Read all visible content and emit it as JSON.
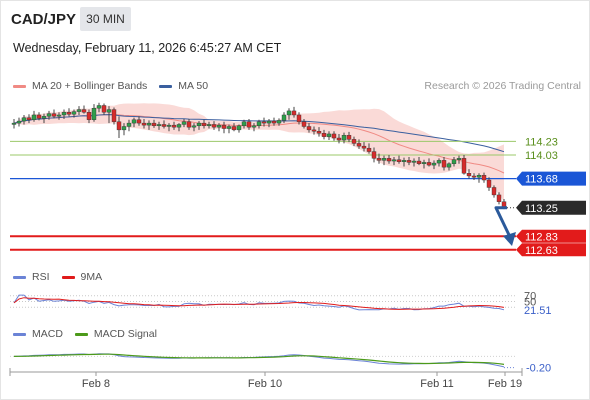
{
  "header": {
    "symbol": "CAD/JPY",
    "timeframe": "30 MIN",
    "datetime": "Wednesday, February 11, 2026 6:45:27 AM CET",
    "credit": "Research © 2026 Trading Central"
  },
  "legends": {
    "price": [
      {
        "label": "MA 20 + Bollinger Bands",
        "color": "#f08a84"
      },
      {
        "label": "MA 50",
        "color": "#3a5f9f"
      }
    ],
    "rsi": [
      {
        "label": "RSI",
        "color": "#6b83d6"
      },
      {
        "label": "9MA",
        "color": "#e01b1b"
      }
    ],
    "macd": [
      {
        "label": "MACD",
        "color": "#6b83d6"
      },
      {
        "label": "MACD Signal",
        "color": "#4c9a1a"
      }
    ]
  },
  "colors": {
    "bull": "#2e9e4a",
    "bear": "#d62b2b",
    "bollinger_fill": "#f9d3d0",
    "ma20": "#f08a84",
    "ma50": "#3a5f9f",
    "resistance": "#9bc86a",
    "pivot": "#1a56d6",
    "support": "#e21b1b",
    "current": "#2a2a2a",
    "arrow": "#2b5a9b"
  },
  "chart_data": {
    "type": "candlestick",
    "y_range": [
      112.45,
      114.9
    ],
    "x_ticks": [
      "Feb 8",
      "Feb 10",
      "Feb 11",
      "Feb 19"
    ],
    "levels": [
      {
        "value": 114.23,
        "label": "114.23",
        "kind": "resistance"
      },
      {
        "value": 114.03,
        "label": "114.03",
        "kind": "resistance"
      },
      {
        "value": 113.68,
        "label": "113.68",
        "kind": "pivot"
      },
      {
        "value": 113.25,
        "label": "113.25",
        "kind": "current"
      },
      {
        "value": 112.83,
        "label": "112.83",
        "kind": "support"
      },
      {
        "value": 112.63,
        "label": "112.63",
        "kind": "support"
      }
    ],
    "forecast_arrow": {
      "from": 113.25,
      "to": 112.73
    },
    "candles": [
      {
        "o": 114.48,
        "h": 114.56,
        "l": 114.42,
        "c": 114.5
      },
      {
        "o": 114.5,
        "h": 114.58,
        "l": 114.45,
        "c": 114.53
      },
      {
        "o": 114.53,
        "h": 114.62,
        "l": 114.48,
        "c": 114.58
      },
      {
        "o": 114.58,
        "h": 114.63,
        "l": 114.5,
        "c": 114.55
      },
      {
        "o": 114.55,
        "h": 114.68,
        "l": 114.52,
        "c": 114.62
      },
      {
        "o": 114.62,
        "h": 114.66,
        "l": 114.54,
        "c": 114.57
      },
      {
        "o": 114.57,
        "h": 114.64,
        "l": 114.5,
        "c": 114.6
      },
      {
        "o": 114.6,
        "h": 114.68,
        "l": 114.55,
        "c": 114.64
      },
      {
        "o": 114.64,
        "h": 114.7,
        "l": 114.57,
        "c": 114.6
      },
      {
        "o": 114.6,
        "h": 114.66,
        "l": 114.55,
        "c": 114.62
      },
      {
        "o": 114.62,
        "h": 114.7,
        "l": 114.56,
        "c": 114.66
      },
      {
        "o": 114.66,
        "h": 114.72,
        "l": 114.6,
        "c": 114.63
      },
      {
        "o": 114.63,
        "h": 114.7,
        "l": 114.58,
        "c": 114.67
      },
      {
        "o": 114.67,
        "h": 114.75,
        "l": 114.62,
        "c": 114.7
      },
      {
        "o": 114.7,
        "h": 114.76,
        "l": 114.64,
        "c": 114.66
      },
      {
        "o": 114.66,
        "h": 114.7,
        "l": 114.5,
        "c": 114.55
      },
      {
        "o": 114.55,
        "h": 114.78,
        "l": 114.52,
        "c": 114.72
      },
      {
        "o": 114.72,
        "h": 114.8,
        "l": 114.66,
        "c": 114.76
      },
      {
        "o": 114.76,
        "h": 114.79,
        "l": 114.62,
        "c": 114.66
      },
      {
        "o": 114.66,
        "h": 114.75,
        "l": 114.5,
        "c": 114.7
      },
      {
        "o": 114.7,
        "h": 114.73,
        "l": 114.48,
        "c": 114.52
      },
      {
        "o": 114.52,
        "h": 114.6,
        "l": 114.28,
        "c": 114.4
      },
      {
        "o": 114.4,
        "h": 114.5,
        "l": 114.32,
        "c": 114.45
      },
      {
        "o": 114.45,
        "h": 114.55,
        "l": 114.38,
        "c": 114.5
      },
      {
        "o": 114.5,
        "h": 114.58,
        "l": 114.44,
        "c": 114.55
      },
      {
        "o": 114.55,
        "h": 114.6,
        "l": 114.46,
        "c": 114.5
      },
      {
        "o": 114.5,
        "h": 114.56,
        "l": 114.42,
        "c": 114.47
      },
      {
        "o": 114.47,
        "h": 114.54,
        "l": 114.4,
        "c": 114.5
      },
      {
        "o": 114.5,
        "h": 114.55,
        "l": 114.43,
        "c": 114.46
      },
      {
        "o": 114.46,
        "h": 114.52,
        "l": 114.4,
        "c": 114.48
      },
      {
        "o": 114.48,
        "h": 114.54,
        "l": 114.42,
        "c": 114.45
      },
      {
        "o": 114.45,
        "h": 114.5,
        "l": 114.38,
        "c": 114.47
      },
      {
        "o": 114.47,
        "h": 114.52,
        "l": 114.4,
        "c": 114.44
      },
      {
        "o": 114.44,
        "h": 114.5,
        "l": 114.38,
        "c": 114.48
      },
      {
        "o": 114.48,
        "h": 114.56,
        "l": 114.44,
        "c": 114.52
      },
      {
        "o": 114.52,
        "h": 114.56,
        "l": 114.4,
        "c": 114.44
      },
      {
        "o": 114.44,
        "h": 114.5,
        "l": 114.38,
        "c": 114.46
      },
      {
        "o": 114.46,
        "h": 114.53,
        "l": 114.4,
        "c": 114.5
      },
      {
        "o": 114.5,
        "h": 114.55,
        "l": 114.42,
        "c": 114.46
      },
      {
        "o": 114.46,
        "h": 114.52,
        "l": 114.42,
        "c": 114.48
      },
      {
        "o": 114.48,
        "h": 114.53,
        "l": 114.4,
        "c": 114.44
      },
      {
        "o": 114.44,
        "h": 114.5,
        "l": 114.38,
        "c": 114.47
      },
      {
        "o": 114.47,
        "h": 114.52,
        "l": 114.35,
        "c": 114.42
      },
      {
        "o": 114.42,
        "h": 114.48,
        "l": 114.35,
        "c": 114.45
      },
      {
        "o": 114.45,
        "h": 114.5,
        "l": 114.38,
        "c": 114.4
      },
      {
        "o": 114.4,
        "h": 114.48,
        "l": 114.36,
        "c": 114.46
      },
      {
        "o": 114.46,
        "h": 114.55,
        "l": 114.42,
        "c": 114.52
      },
      {
        "o": 114.52,
        "h": 114.56,
        "l": 114.4,
        "c": 114.44
      },
      {
        "o": 114.44,
        "h": 114.5,
        "l": 114.38,
        "c": 114.46
      },
      {
        "o": 114.46,
        "h": 114.55,
        "l": 114.42,
        "c": 114.52
      },
      {
        "o": 114.52,
        "h": 114.58,
        "l": 114.45,
        "c": 114.5
      },
      {
        "o": 114.5,
        "h": 114.56,
        "l": 114.44,
        "c": 114.53
      },
      {
        "o": 114.53,
        "h": 114.58,
        "l": 114.46,
        "c": 114.5
      },
      {
        "o": 114.5,
        "h": 114.57,
        "l": 114.46,
        "c": 114.54
      },
      {
        "o": 114.54,
        "h": 114.66,
        "l": 114.5,
        "c": 114.62
      },
      {
        "o": 114.62,
        "h": 114.72,
        "l": 114.55,
        "c": 114.68
      },
      {
        "o": 114.68,
        "h": 114.74,
        "l": 114.58,
        "c": 114.62
      },
      {
        "o": 114.62,
        "h": 114.66,
        "l": 114.48,
        "c": 114.52
      },
      {
        "o": 114.52,
        "h": 114.56,
        "l": 114.42,
        "c": 114.45
      },
      {
        "o": 114.45,
        "h": 114.5,
        "l": 114.36,
        "c": 114.4
      },
      {
        "o": 114.4,
        "h": 114.45,
        "l": 114.33,
        "c": 114.38
      },
      {
        "o": 114.38,
        "h": 114.44,
        "l": 114.3,
        "c": 114.35
      },
      {
        "o": 114.35,
        "h": 114.4,
        "l": 114.26,
        "c": 114.3
      },
      {
        "o": 114.3,
        "h": 114.38,
        "l": 114.25,
        "c": 114.34
      },
      {
        "o": 114.34,
        "h": 114.38,
        "l": 114.24,
        "c": 114.28
      },
      {
        "o": 114.28,
        "h": 114.34,
        "l": 114.2,
        "c": 114.25
      },
      {
        "o": 114.25,
        "h": 114.36,
        "l": 114.2,
        "c": 114.32
      },
      {
        "o": 114.32,
        "h": 114.37,
        "l": 114.22,
        "c": 114.26
      },
      {
        "o": 114.26,
        "h": 114.3,
        "l": 114.16,
        "c": 114.2
      },
      {
        "o": 114.2,
        "h": 114.26,
        "l": 114.12,
        "c": 114.16
      },
      {
        "o": 114.16,
        "h": 114.22,
        "l": 114.08,
        "c": 114.13
      },
      {
        "o": 114.13,
        "h": 114.2,
        "l": 114.05,
        "c": 114.08
      },
      {
        "o": 114.08,
        "h": 114.14,
        "l": 113.92,
        "c": 113.98
      },
      {
        "o": 113.98,
        "h": 114.05,
        "l": 113.9,
        "c": 113.95
      },
      {
        "o": 113.95,
        "h": 114.02,
        "l": 113.88,
        "c": 113.98
      },
      {
        "o": 113.98,
        "h": 114.03,
        "l": 113.9,
        "c": 113.94
      },
      {
        "o": 113.94,
        "h": 114.0,
        "l": 113.88,
        "c": 113.96
      },
      {
        "o": 113.96,
        "h": 114.02,
        "l": 113.9,
        "c": 113.93
      },
      {
        "o": 113.93,
        "h": 113.99,
        "l": 113.86,
        "c": 113.95
      },
      {
        "o": 113.95,
        "h": 114.0,
        "l": 113.88,
        "c": 113.92
      },
      {
        "o": 113.92,
        "h": 113.98,
        "l": 113.86,
        "c": 113.94
      },
      {
        "o": 113.94,
        "h": 114.0,
        "l": 113.88,
        "c": 113.9
      },
      {
        "o": 113.9,
        "h": 113.96,
        "l": 113.83,
        "c": 113.92
      },
      {
        "o": 113.92,
        "h": 113.98,
        "l": 113.86,
        "c": 113.88
      },
      {
        "o": 113.88,
        "h": 113.95,
        "l": 113.82,
        "c": 113.91
      },
      {
        "o": 113.91,
        "h": 113.98,
        "l": 113.86,
        "c": 113.95
      },
      {
        "o": 113.95,
        "h": 114.0,
        "l": 113.8,
        "c": 113.85
      },
      {
        "o": 113.85,
        "h": 113.92,
        "l": 113.8,
        "c": 113.9
      },
      {
        "o": 113.9,
        "h": 114.0,
        "l": 113.86,
        "c": 113.96
      },
      {
        "o": 113.96,
        "h": 114.02,
        "l": 113.9,
        "c": 113.98
      },
      {
        "o": 113.98,
        "h": 114.03,
        "l": 113.74,
        "c": 113.76
      },
      {
        "o": 113.76,
        "h": 113.82,
        "l": 113.68,
        "c": 113.72
      },
      {
        "o": 113.72,
        "h": 113.76,
        "l": 113.66,
        "c": 113.7
      },
      {
        "o": 113.7,
        "h": 113.76,
        "l": 113.62,
        "c": 113.73
      },
      {
        "o": 113.73,
        "h": 113.77,
        "l": 113.62,
        "c": 113.66
      },
      {
        "o": 113.66,
        "h": 113.7,
        "l": 113.5,
        "c": 113.55
      },
      {
        "o": 113.55,
        "h": 113.58,
        "l": 113.4,
        "c": 113.44
      },
      {
        "o": 113.44,
        "h": 113.48,
        "l": 113.3,
        "c": 113.34
      },
      {
        "o": 113.34,
        "h": 113.38,
        "l": 113.23,
        "c": 113.25
      }
    ],
    "rsi": {
      "y_range": [
        0,
        100
      ],
      "ticks": [
        {
          "value": 70,
          "label": "70"
        },
        {
          "value": 50,
          "label": "50"
        }
      ],
      "current": {
        "value": 21.51,
        "label": "21.51"
      },
      "ref_values": [
        70,
        50,
        30
      ]
    },
    "macd": {
      "y_range": [
        -0.26,
        0.22
      ],
      "current": {
        "value": -0.2,
        "label": "-0.20"
      }
    }
  }
}
